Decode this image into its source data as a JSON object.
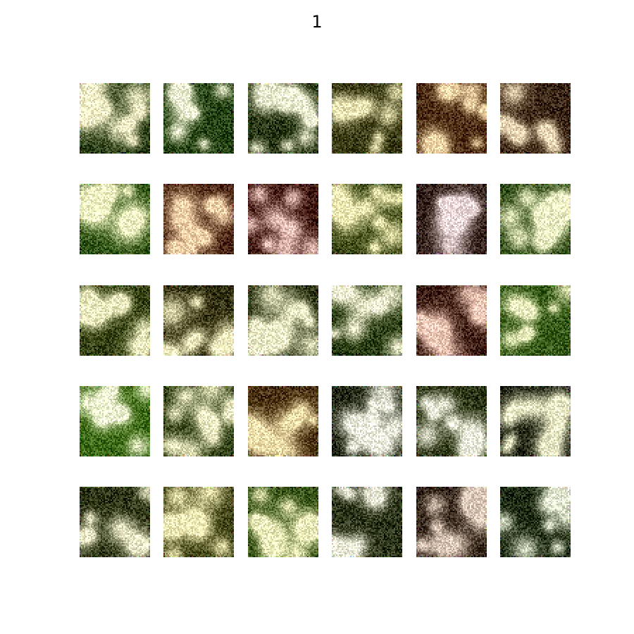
{
  "figure": {
    "title": "1"
  },
  "grid": {
    "rows": 5,
    "cols": 6,
    "tiles": [
      {
        "base": "#2a3d14",
        "blob": "#f4f0c8",
        "seed": 11
      },
      {
        "base": "#23400f",
        "blob": "#f3f6d6",
        "seed": 12
      },
      {
        "base": "#25330f",
        "blob": "#eef0d2",
        "seed": 13
      },
      {
        "base": "#3a3a12",
        "blob": "#ede7b6",
        "seed": 14
      },
      {
        "base": "#4a2a0f",
        "blob": "#f2d6a8",
        "seed": 15
      },
      {
        "base": "#3a2412",
        "blob": "#ead6b4",
        "seed": 16
      },
      {
        "base": "#2e5212",
        "blob": "#f4f7c4",
        "seed": 21
      },
      {
        "base": "#4a2410",
        "blob": "#f2d0a8",
        "seed": 22
      },
      {
        "base": "#3d140c",
        "blob": "#f0c8c0",
        "seed": 23
      },
      {
        "base": "#3a4612",
        "blob": "#f3efb6",
        "seed": 24
      },
      {
        "base": "#34201a",
        "blob": "#ead6d6",
        "seed": 25
      },
      {
        "base": "#2e4a14",
        "blob": "#eef2c4",
        "seed": 26
      },
      {
        "base": "#34400f",
        "blob": "#eeeec0",
        "seed": 31
      },
      {
        "base": "#33300e",
        "blob": "#f2eec0",
        "seed": 32
      },
      {
        "base": "#2a3210",
        "blob": "#eeeec8",
        "seed": 33
      },
      {
        "base": "#273a0e",
        "blob": "#f6f4d6",
        "seed": 34
      },
      {
        "base": "#3a1a0e",
        "blob": "#f0c8b8",
        "seed": 35
      },
      {
        "base": "#365a16",
        "blob": "#eef2c0",
        "seed": 36
      },
      {
        "base": "#3d6a14",
        "blob": "#f2f8d2",
        "seed": 41
      },
      {
        "base": "#2c3c10",
        "blob": "#f0eec4",
        "seed": 42
      },
      {
        "base": "#4a3210",
        "blob": "#f2e0ac",
        "seed": 43
      },
      {
        "base": "#1e2410",
        "blob": "#eeeede",
        "seed": 44
      },
      {
        "base": "#2a3412",
        "blob": "#f2f2e0",
        "seed": 45
      },
      {
        "base": "#1c200e",
        "blob": "#eaeac6",
        "seed": 46
      },
      {
        "base": "#2a3212",
        "blob": "#eceac8",
        "seed": 51
      },
      {
        "base": "#3f4212",
        "blob": "#f4eeb8",
        "seed": 52
      },
      {
        "base": "#345012",
        "blob": "#f0f0bc",
        "seed": 53
      },
      {
        "base": "#2c3418",
        "blob": "#eaead6",
        "seed": 54
      },
      {
        "base": "#2a1c10",
        "blob": "#dcc8b8",
        "seed": 55
      },
      {
        "base": "#1c2a10",
        "blob": "#e4ead2",
        "seed": 56
      }
    ]
  }
}
